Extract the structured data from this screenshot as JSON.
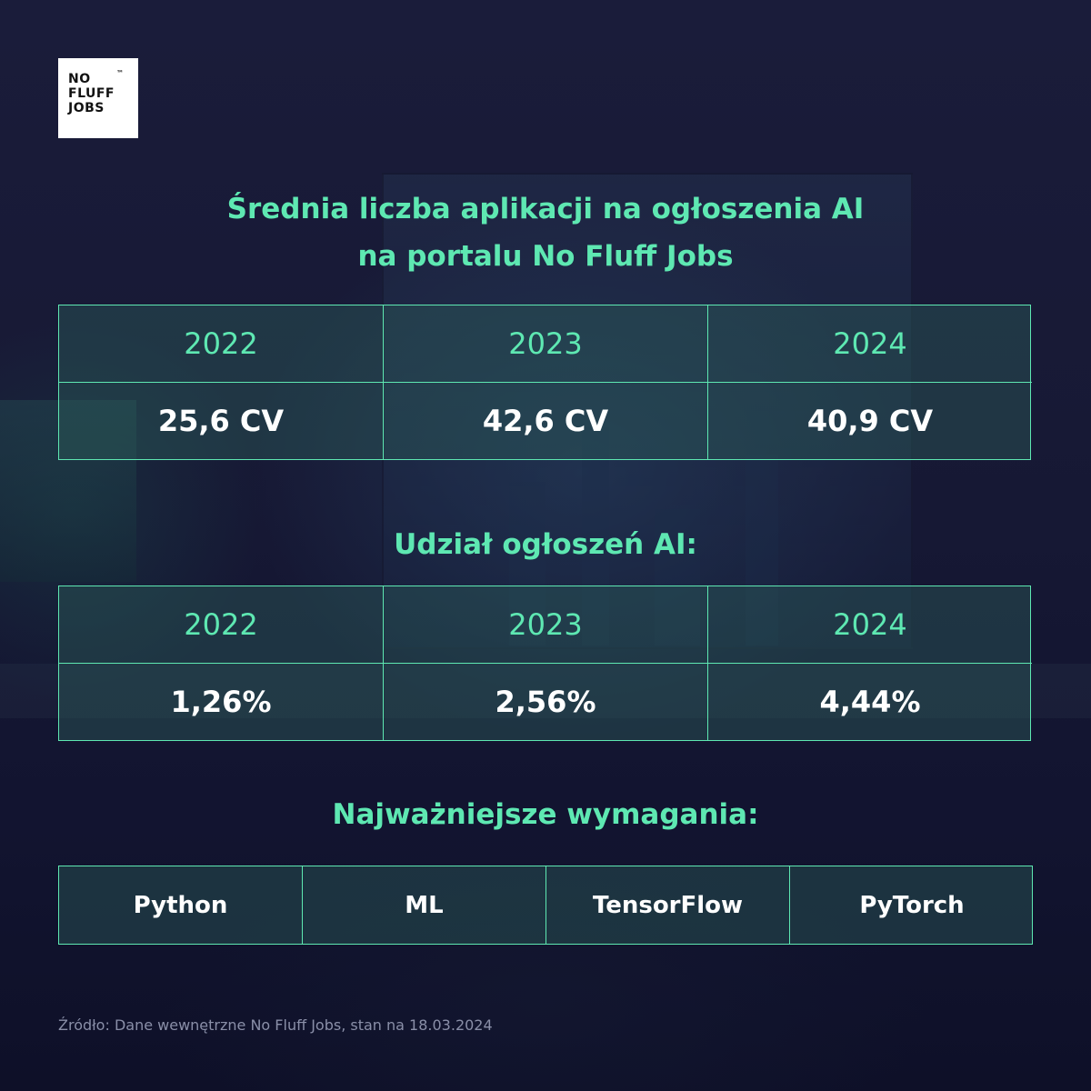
{
  "logo": {
    "lines": [
      "NO",
      "FLUFF",
      "JOBS"
    ],
    "tm": "™"
  },
  "section1": {
    "title_line1": "Średnia liczba aplikacji na ogłoszenia AI",
    "title_line2": "na portalu No Fluff Jobs",
    "years": [
      "2022",
      "2023",
      "2024"
    ],
    "values": [
      "25,6 CV",
      "42,6 CV",
      "40,9 CV"
    ]
  },
  "section2": {
    "title": "Udział ogłoszeń AI:",
    "years": [
      "2022",
      "2023",
      "2024"
    ],
    "values": [
      "1,26%",
      "2,56%",
      "4,44%"
    ]
  },
  "section3": {
    "title": "Najważniejsze wymagania:",
    "items": [
      "Python",
      "ML",
      "TensorFlow",
      "PyTorch"
    ]
  },
  "source": "Źródło: Dane wewnętrzne No Fluff Jobs, stan na 18.03.2024",
  "colors": {
    "accent": "#5ee8b2",
    "background": "#171935",
    "text": "#ffffff"
  }
}
